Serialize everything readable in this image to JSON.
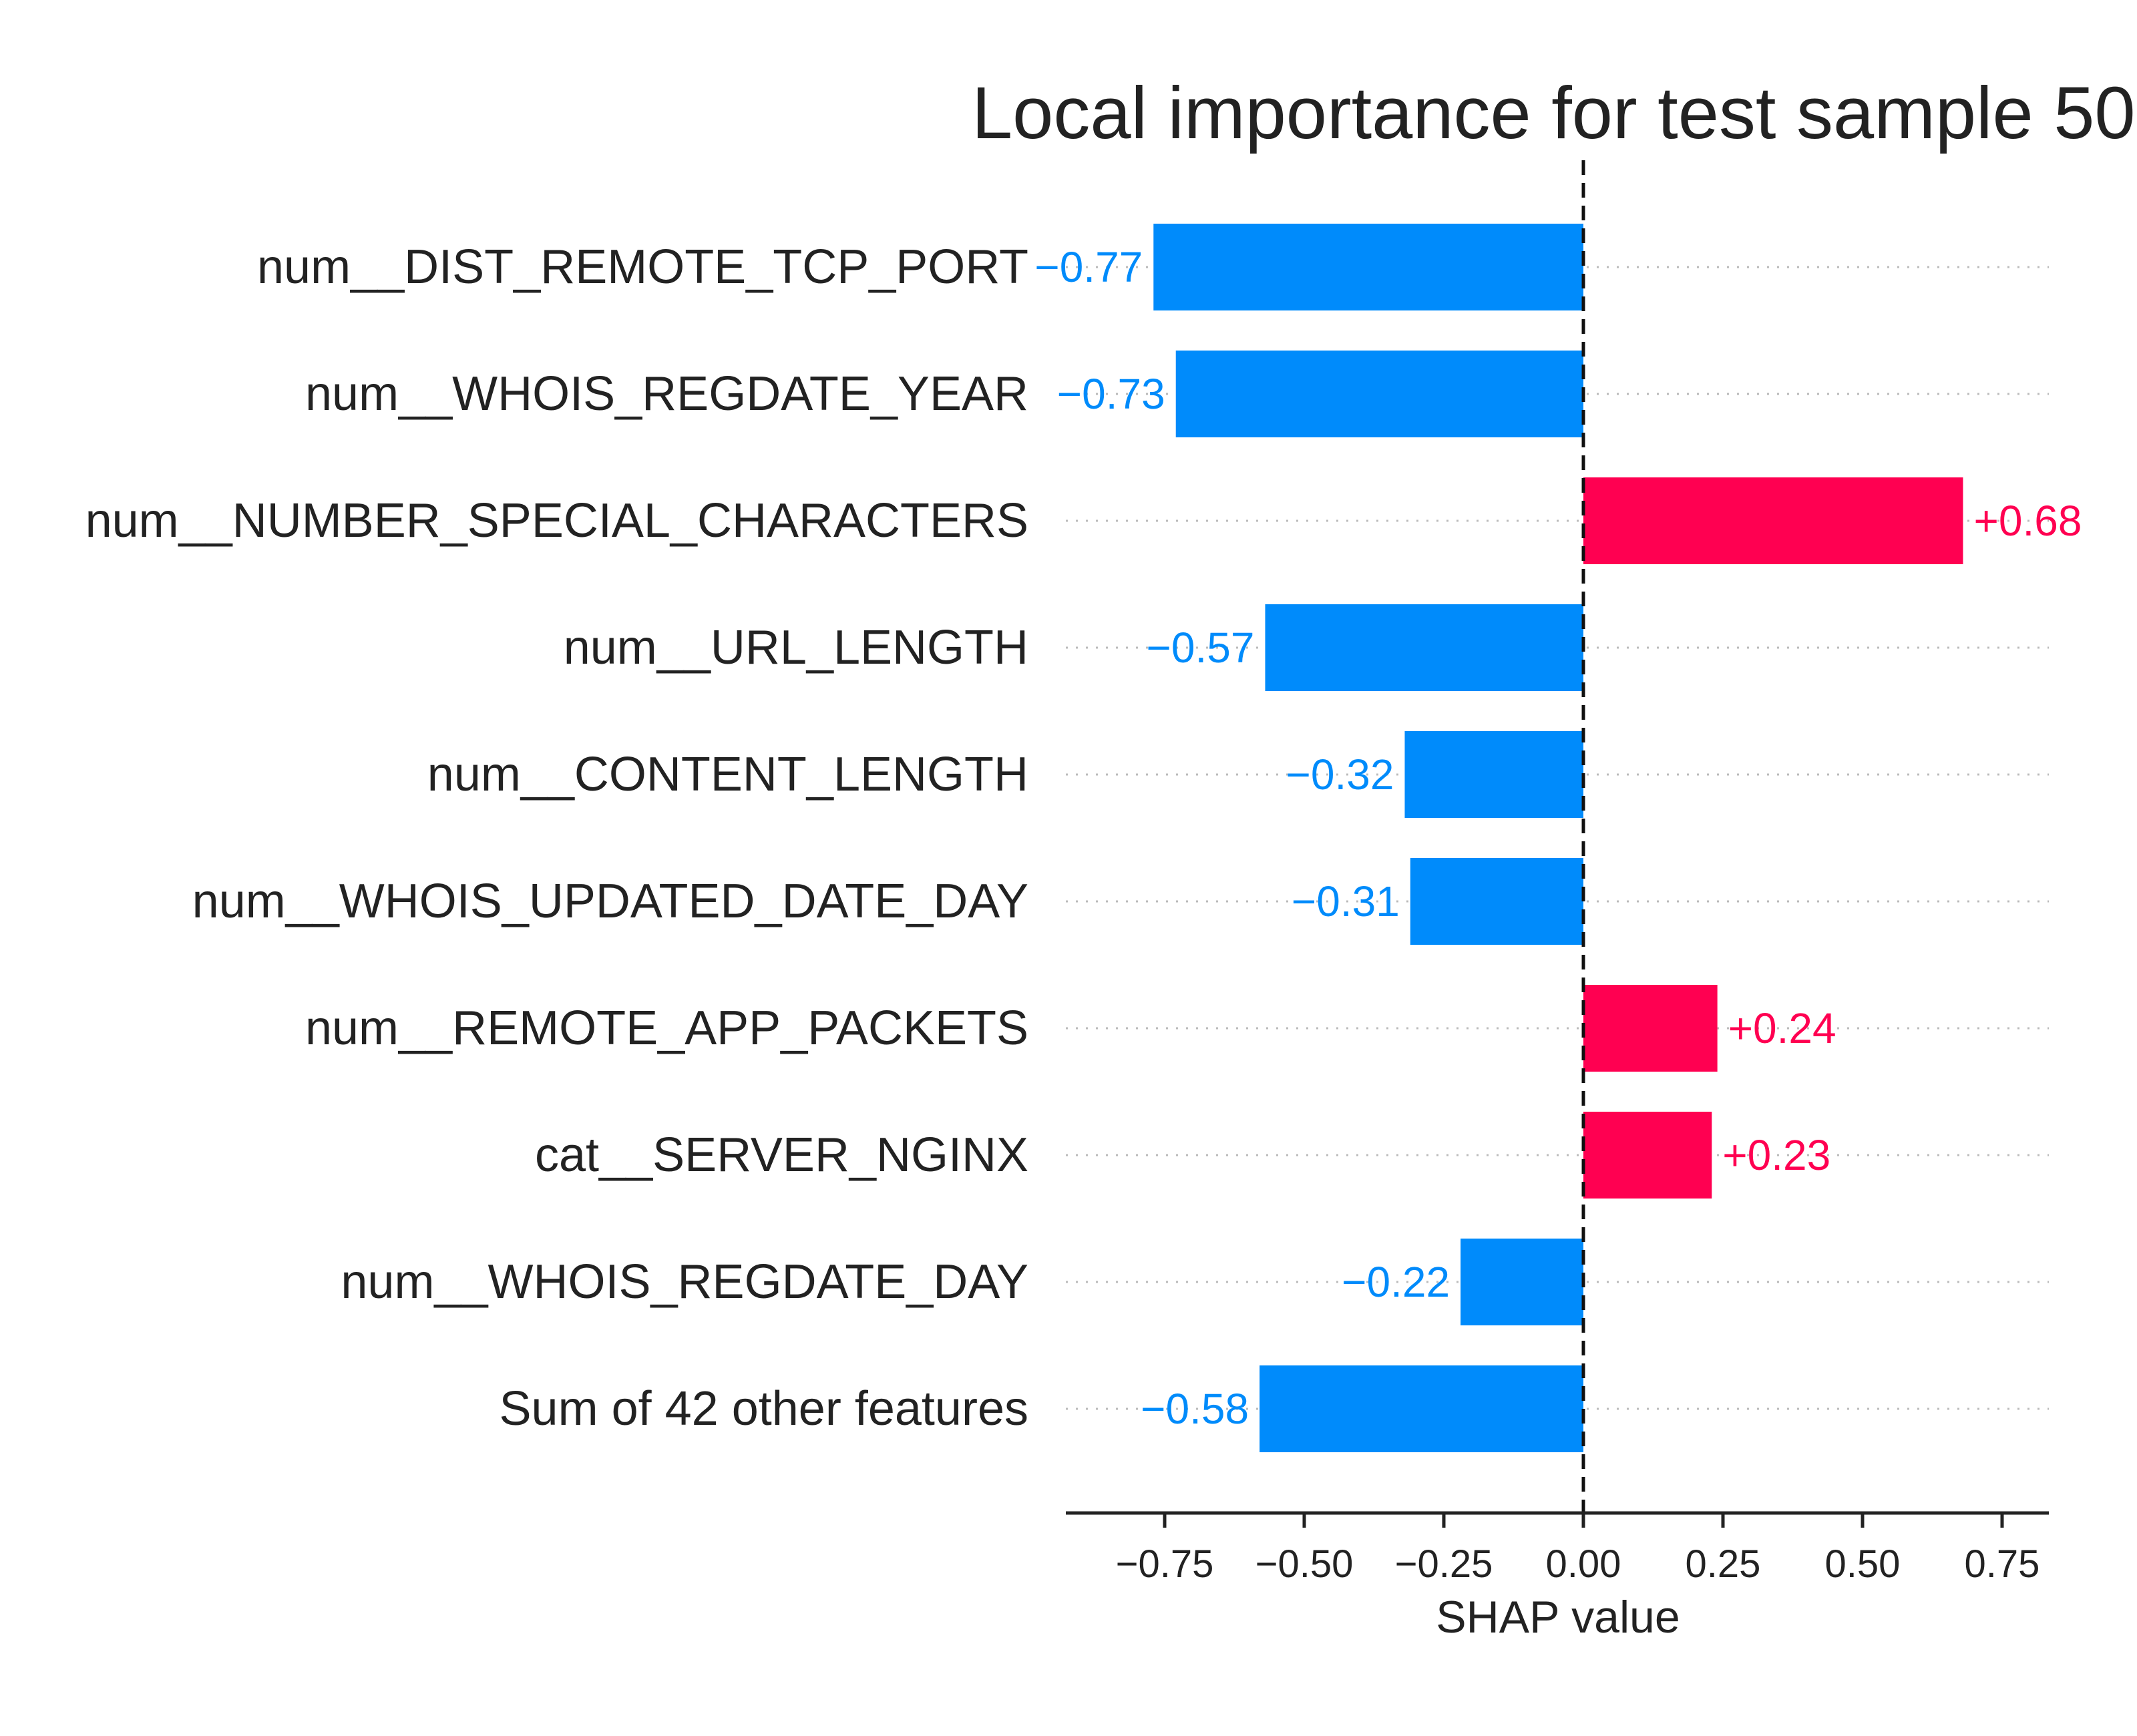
{
  "chart_data": {
    "type": "bar",
    "orientation": "horizontal",
    "title": "Local importance for test sample 50",
    "xlabel": "SHAP value",
    "ylabel": "",
    "xlim": [
      -0.95,
      0.82
    ],
    "xticks": [
      -0.75,
      -0.5,
      -0.25,
      0.0,
      0.25,
      0.5,
      0.75
    ],
    "xtick_labels": [
      "−0.75",
      "−0.50",
      "−0.25",
      "0.00",
      "0.25",
      "0.50",
      "0.75"
    ],
    "grid": "dotted horizontal lines per feature",
    "categories": [
      "num__DIST_REMOTE_TCP_PORT",
      "num__WHOIS_REGDATE_YEAR",
      "num__NUMBER_SPECIAL_CHARACTERS",
      "num__URL_LENGTH",
      "num__CONTENT_LENGTH",
      "num__WHOIS_UPDATED_DATE_DAY",
      "num__REMOTE_APP_PACKETS",
      "cat__SERVER_NGINX",
      "num__WHOIS_REGDATE_DAY",
      "Sum of 42 other features"
    ],
    "values": [
      -0.77,
      -0.73,
      0.68,
      -0.57,
      -0.32,
      -0.31,
      0.24,
      0.23,
      -0.22,
      -0.58
    ],
    "value_labels": [
      "−0.77",
      "−0.73",
      "+0.68",
      "−0.57",
      "−0.32",
      "−0.31",
      "+0.24",
      "+0.23",
      "−0.22",
      "−0.58"
    ],
    "colors": {
      "positive": "#ff0051",
      "negative": "#008bfb"
    }
  }
}
